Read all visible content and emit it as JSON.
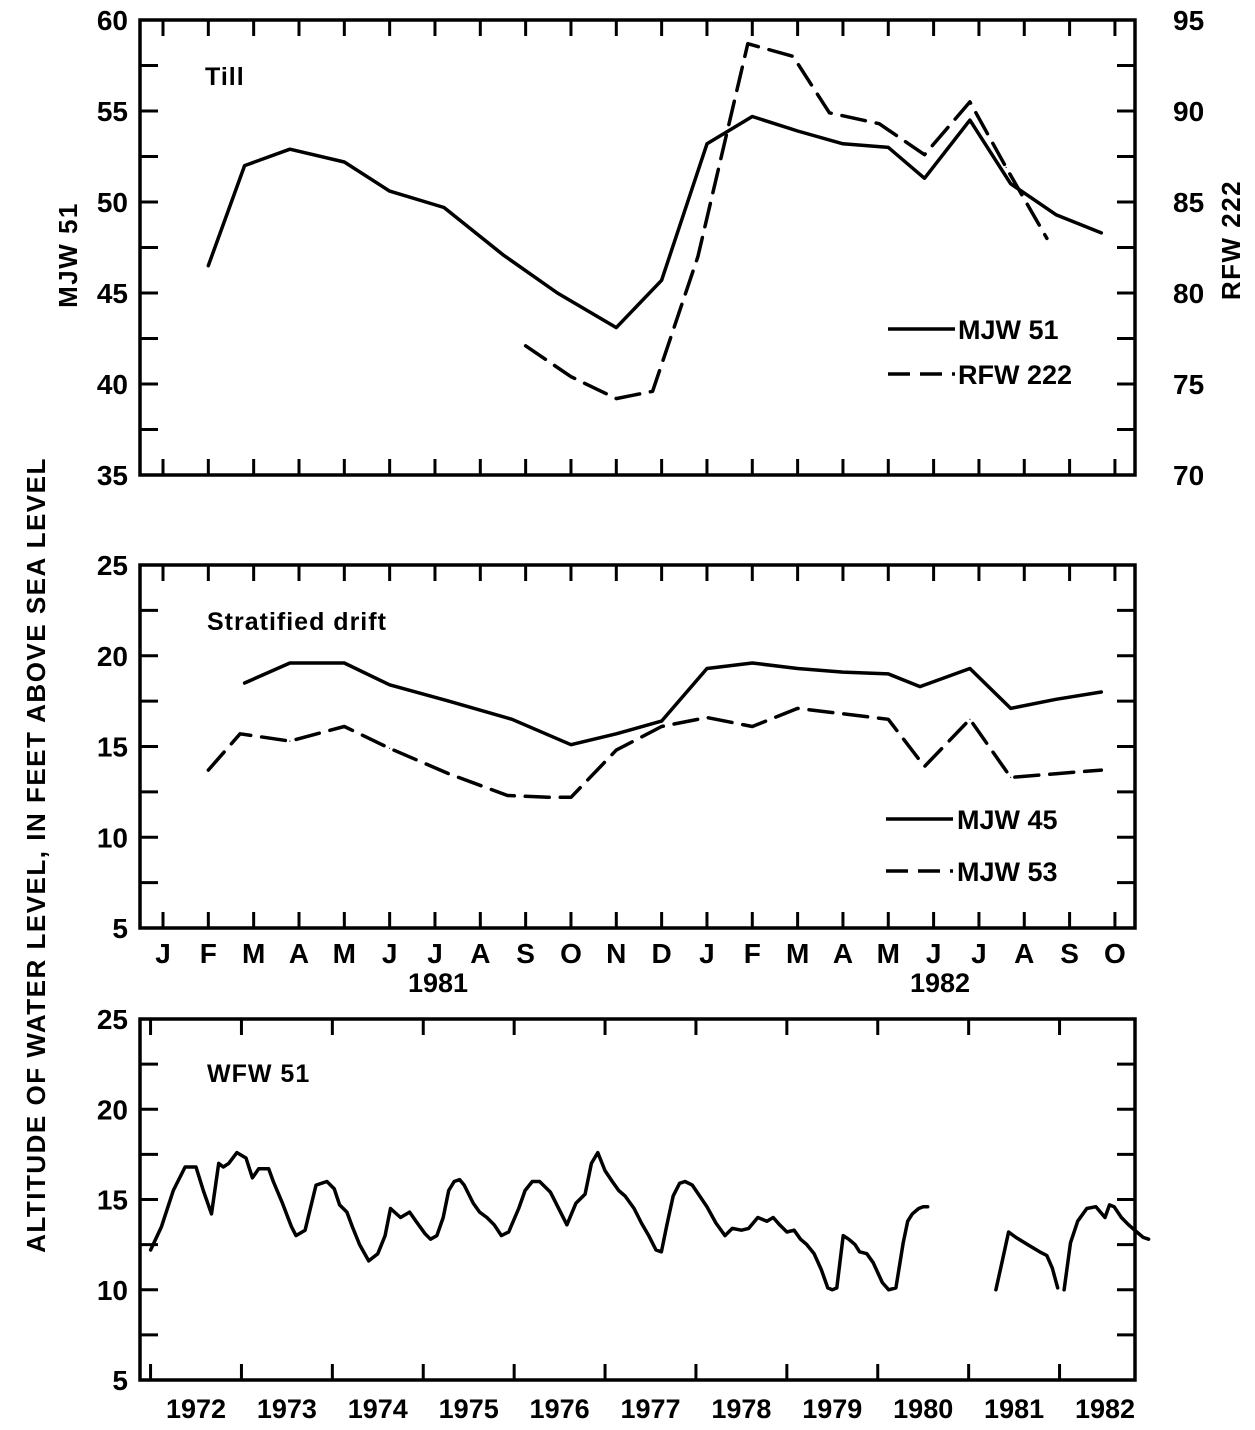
{
  "ylabel": "ALTITUDE OF WATER LEVEL, IN FEET ABOVE SEA LEVEL",
  "x_months": [
    "J",
    "F",
    "M",
    "A",
    "M",
    "J",
    "J",
    "A",
    "S",
    "O",
    "N",
    "D",
    "J",
    "F",
    "M",
    "A",
    "M",
    "J",
    "J",
    "A",
    "S",
    "O"
  ],
  "x_years_1981_82": [
    "1981",
    "1982"
  ],
  "chart_data": [
    {
      "type": "line",
      "title": "Till",
      "x_unit": "month index (0 = Jan 1981)",
      "ylabel_left": "MJW 51",
      "ylabel_right": "RFW 222",
      "ylim_left": [
        35,
        60
      ],
      "ylim_right": [
        70,
        95
      ],
      "yticks_left": [
        35,
        40,
        45,
        50,
        55,
        60
      ],
      "yticks_right": [
        70,
        75,
        80,
        85,
        90,
        95
      ],
      "legend_placement": "lower-right",
      "series": [
        {
          "name": "MJW 51",
          "style": "solid",
          "axis": "left",
          "x": [
            1.0,
            1.8,
            2.8,
            4.0,
            5.0,
            6.2,
            7.5,
            8.7,
            10.0,
            11.0,
            12.0,
            13.0,
            14.0,
            15.0,
            16.0,
            16.8,
            17.8,
            18.7,
            19.7,
            20.7
          ],
          "y": [
            46.5,
            52.0,
            52.9,
            52.2,
            50.6,
            49.7,
            47.1,
            45.0,
            43.1,
            45.7,
            53.2,
            54.7,
            53.9,
            53.2,
            53.0,
            51.3,
            54.5,
            51.0,
            49.3,
            48.3
          ]
        },
        {
          "name": "RFW 222",
          "style": "dashed",
          "axis": "right",
          "x": [
            8.0,
            9.0,
            10.0,
            10.8,
            11.8,
            12.9,
            13.9,
            14.7,
            15.8,
            16.8,
            17.8,
            18.6,
            19.5
          ],
          "y": [
            77.1,
            75.4,
            74.2,
            74.6,
            82.0,
            93.7,
            93.0,
            89.9,
            89.3,
            87.6,
            90.5,
            86.9,
            83.0
          ]
        }
      ]
    },
    {
      "type": "line",
      "title": "Stratified drift",
      "x_unit": "month index (0 = Jan 1981)",
      "ylim": [
        5,
        25
      ],
      "yticks": [
        5,
        10,
        15,
        20,
        25
      ],
      "legend_placement": "lower-right",
      "series": [
        {
          "name": "MJW 45",
          "style": "solid",
          "x": [
            1.8,
            2.8,
            4.0,
            5.0,
            6.3,
            7.7,
            9.0,
            10.0,
            11.0,
            12.0,
            13.0,
            14.0,
            15.0,
            16.0,
            16.7,
            17.8,
            18.7,
            19.7,
            20.7
          ],
          "y": [
            18.5,
            19.6,
            19.6,
            18.4,
            17.5,
            16.5,
            15.1,
            15.7,
            16.4,
            19.3,
            19.6,
            19.3,
            19.1,
            19.0,
            18.3,
            19.3,
            17.1,
            17.6,
            18.0
          ]
        },
        {
          "name": "MJW 53",
          "style": "dashed",
          "x": [
            1.0,
            1.7,
            2.8,
            4.0,
            5.0,
            6.3,
            7.6,
            8.5,
            9.0,
            10.0,
            11.0,
            12.0,
            13.0,
            14.0,
            15.0,
            16.0,
            16.8,
            17.8,
            18.7,
            19.7,
            20.7
          ],
          "y": [
            13.7,
            15.7,
            15.3,
            16.1,
            14.9,
            13.5,
            12.3,
            12.2,
            12.2,
            14.8,
            16.1,
            16.6,
            16.1,
            17.1,
            16.8,
            16.5,
            13.9,
            16.5,
            13.3,
            13.5,
            13.7
          ]
        }
      ]
    },
    {
      "type": "line",
      "title": "WFW 51",
      "x_unit": "year",
      "xticklabels": [
        "1972",
        "1973",
        "1974",
        "1975",
        "1976",
        "1977",
        "1978",
        "1979",
        "1980",
        "1981",
        "1982"
      ],
      "ylim": [
        5,
        25
      ],
      "yticks": [
        5,
        10,
        15,
        20,
        25
      ],
      "series": [
        {
          "name": "WFW 51",
          "style": "solid",
          "segments": [
            {
              "x": [
                1971.5,
                1971.62,
                1971.75,
                1971.88,
                1972.0,
                1972.08,
                1972.17,
                1972.25,
                1972.3,
                1972.36,
                1972.45,
                1972.55,
                1972.62,
                1972.69,
                1972.75,
                1972.8,
                1972.85,
                1972.95,
                1973.05,
                1973.1,
                1973.2,
                1973.32,
                1973.44,
                1973.52,
                1973.58,
                1973.66,
                1973.72,
                1973.8,
                1973.9,
                1974.0,
                1974.08,
                1974.14,
                1974.25,
                1974.35,
                1974.42,
                1974.52,
                1974.58,
                1974.65,
                1974.72,
                1974.78,
                1974.84,
                1974.9,
                1974.95,
                1975.0,
                1975.05,
                1975.12,
                1975.2,
                1975.28,
                1975.36,
                1975.44,
                1975.55,
                1975.62,
                1975.7,
                1975.78,
                1975.9,
                1976.0,
                1976.08,
                1976.18,
                1976.28,
                1976.35,
                1976.42,
                1976.5,
                1976.58,
                1976.65,
                1976.72,
                1976.82,
                1976.9,
                1976.98,
                1977.06,
                1977.12,
                1977.18,
                1977.25,
                1977.32,
                1977.38,
                1977.46,
                1977.54,
                1977.62,
                1977.72,
                1977.82,
                1977.9,
                1978.0,
                1978.08,
                1978.18,
                1978.28,
                1978.35,
                1978.42,
                1978.5,
                1978.58,
                1978.65,
                1978.72,
                1978.8,
                1978.88,
                1978.95,
                1979.0,
                1979.05,
                1979.12,
                1979.18,
                1979.25,
                1979.3,
                1979.38,
                1979.45,
                1979.55,
                1979.62,
                1979.7,
                1979.78,
                1979.83,
                1979.88,
                1979.95,
                1980.0,
                1980.05
              ],
              "y": [
                12.2,
                13.5,
                15.5,
                16.8,
                16.8,
                15.5,
                14.2,
                17.0,
                16.8,
                17.0,
                17.6,
                17.3,
                16.2,
                16.7,
                16.7,
                16.7,
                16.0,
                14.8,
                13.5,
                13.0,
                13.3,
                15.8,
                16.0,
                15.6,
                14.7,
                14.3,
                13.5,
                12.5,
                11.6,
                12.0,
                13.0,
                14.5,
                14.0,
                14.3,
                13.8,
                13.1,
                12.8,
                13.0,
                14.0,
                15.5,
                16.0,
                16.1,
                15.8,
                15.3,
                14.8,
                14.3,
                14.0,
                13.6,
                13.0,
                13.2,
                14.5,
                15.5,
                16.0,
                16.0,
                15.4,
                14.4,
                13.6,
                14.8,
                15.3,
                17.0,
                17.6,
                16.6,
                16.0,
                15.5,
                15.2,
                14.5,
                13.7,
                13.0,
                12.2,
                12.1,
                13.6,
                15.2,
                15.9,
                16.0,
                15.8,
                15.2,
                14.6,
                13.7,
                13.0,
                13.4,
                13.3,
                13.4,
                14.0,
                13.8,
                14.0,
                13.6,
                13.2,
                13.3,
                12.8,
                12.5,
                12.0,
                11.1,
                10.1,
                10.0,
                10.1,
                13.0,
                12.8,
                12.5,
                12.1,
                12.0,
                11.5,
                10.4,
                10.0,
                10.1,
                12.6,
                13.8,
                14.2,
                14.5,
                14.6,
                14.6
              ]
            },
            {
              "x": [
                1980.8,
                1980.87,
                1980.94,
                1981.02,
                1981.15,
                1981.28,
                1981.36,
                1981.42,
                1981.48
              ],
              "y": [
                10.0,
                11.6,
                13.2,
                12.9,
                12.5,
                12.1,
                11.9,
                11.2,
                10.1
              ]
            },
            {
              "x": [
                1981.55,
                1981.62,
                1981.7,
                1981.8,
                1981.9,
                1982.0,
                1982.05,
                1982.1,
                1982.18,
                1982.26,
                1982.35,
                1982.42,
                1982.48
              ],
              "y": [
                10.0,
                12.6,
                13.8,
                14.5,
                14.6,
                14.0,
                14.7,
                14.6,
                14.0,
                13.6,
                13.2,
                12.9,
                12.8
              ]
            }
          ]
        }
      ]
    }
  ]
}
